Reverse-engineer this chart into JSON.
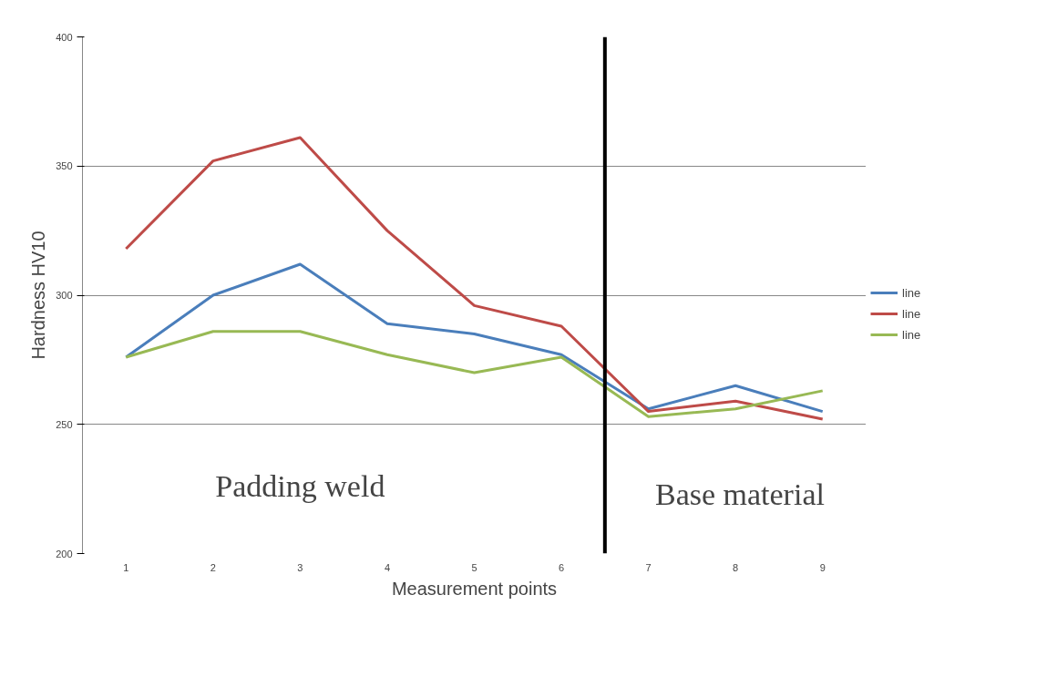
{
  "chart_data": {
    "type": "line",
    "xlabel": "Measurement points",
    "ylabel": "Hardness HV10",
    "x": [
      1,
      2,
      3,
      4,
      5,
      6,
      7,
      8,
      9
    ],
    "xlim": [
      0.5,
      9.5
    ],
    "xticks": [
      1,
      2,
      3,
      4,
      5,
      6,
      7,
      8,
      9
    ],
    "ylim": [
      200,
      400
    ],
    "yticks": [
      200,
      250,
      300,
      350,
      400
    ],
    "grid": "y",
    "legend": "right",
    "marker": "none",
    "line_style": "solid",
    "series": [
      {
        "name": "line",
        "color": "#4a7ebb",
        "values": [
          276,
          300,
          312,
          289,
          285,
          277,
          256,
          265,
          255
        ]
      },
      {
        "name": "line",
        "color": "#be4b48",
        "values": [
          318,
          352,
          361,
          325,
          296,
          288,
          255,
          259,
          252
        ]
      },
      {
        "name": "line",
        "color": "#98b954",
        "values": [
          276,
          286,
          286,
          277,
          270,
          276,
          253,
          256,
          263
        ]
      }
    ],
    "ref_lines": [
      {
        "axis": "x",
        "value": 6.5,
        "label": null,
        "color": "#000000"
      }
    ],
    "annotations": [
      "Padding weld",
      "Base material"
    ]
  }
}
